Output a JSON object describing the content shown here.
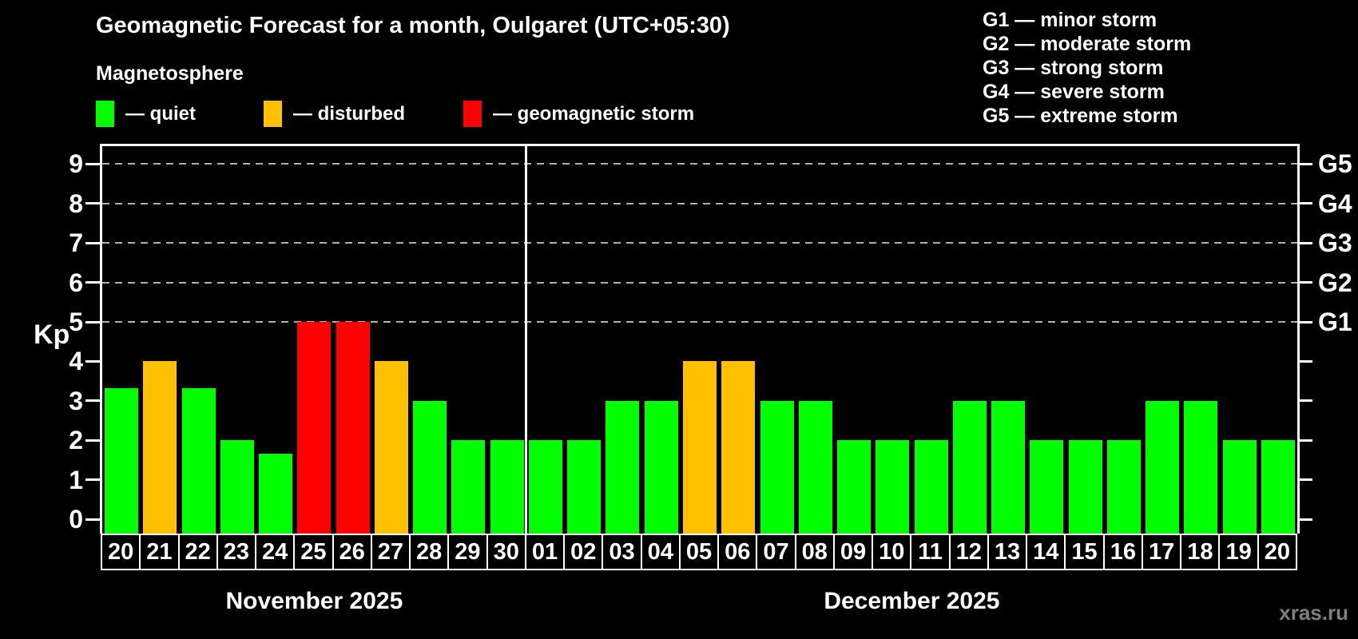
{
  "header": {
    "title": "Geomagnetic Forecast for a month, Oulgaret (UTC+05:30)",
    "subtitle": "Magnetosphere"
  },
  "legend": {
    "items": [
      {
        "key": "quiet",
        "label": "— quiet"
      },
      {
        "key": "disturbed",
        "label": "— disturbed"
      },
      {
        "key": "storm",
        "label": "— geomagnetic storm"
      }
    ]
  },
  "g_scale_legend": {
    "lines": [
      "G1 — minor storm",
      "G2 — moderate storm",
      "G3 — strong storm",
      "G4 — severe storm",
      "G5 — extreme storm"
    ]
  },
  "colors": {
    "quiet": "#00ff00",
    "disturbed": "#ffc000",
    "storm": "#ff0000",
    "background": "#000000",
    "axis": "#ffffff",
    "grid": "#b0b0b0",
    "watermark": "#7f7f7f"
  },
  "chart_data": {
    "type": "bar",
    "title": "Geomagnetic Forecast for a month, Oulgaret (UTC+05:30)",
    "subtitle": "Magnetosphere",
    "ylabel": "Kp",
    "ylim": [
      0,
      9
    ],
    "yticks": [
      0,
      1,
      2,
      3,
      4,
      5,
      6,
      7,
      8,
      9
    ],
    "gridlines_at": [
      5,
      6,
      7,
      8,
      9
    ],
    "grid": true,
    "right_axis": [
      {
        "kp": 5,
        "label": "G1"
      },
      {
        "kp": 6,
        "label": "G2"
      },
      {
        "kp": 7,
        "label": "G3"
      },
      {
        "kp": 8,
        "label": "G4"
      },
      {
        "kp": 9,
        "label": "G5"
      }
    ],
    "months": [
      {
        "label": "November 2025",
        "days": [
          {
            "day": "20",
            "kp": 3.33,
            "status": "quiet"
          },
          {
            "day": "21",
            "kp": 4,
            "status": "disturbed"
          },
          {
            "day": "22",
            "kp": 3.33,
            "status": "quiet"
          },
          {
            "day": "23",
            "kp": 2,
            "status": "quiet"
          },
          {
            "day": "24",
            "kp": 1.67,
            "status": "quiet"
          },
          {
            "day": "25",
            "kp": 5,
            "status": "storm"
          },
          {
            "day": "26",
            "kp": 5,
            "status": "storm"
          },
          {
            "day": "27",
            "kp": 4,
            "status": "disturbed"
          },
          {
            "day": "28",
            "kp": 3,
            "status": "quiet"
          },
          {
            "day": "29",
            "kp": 2,
            "status": "quiet"
          },
          {
            "day": "30",
            "kp": 2,
            "status": "quiet"
          }
        ]
      },
      {
        "label": "December 2025",
        "days": [
          {
            "day": "01",
            "kp": 2,
            "status": "quiet"
          },
          {
            "day": "02",
            "kp": 2,
            "status": "quiet"
          },
          {
            "day": "03",
            "kp": 3,
            "status": "quiet"
          },
          {
            "day": "04",
            "kp": 3,
            "status": "quiet"
          },
          {
            "day": "05",
            "kp": 4,
            "status": "disturbed"
          },
          {
            "day": "06",
            "kp": 4,
            "status": "disturbed"
          },
          {
            "day": "07",
            "kp": 3,
            "status": "quiet"
          },
          {
            "day": "08",
            "kp": 3,
            "status": "quiet"
          },
          {
            "day": "09",
            "kp": 2,
            "status": "quiet"
          },
          {
            "day": "10",
            "kp": 2,
            "status": "quiet"
          },
          {
            "day": "11",
            "kp": 2,
            "status": "quiet"
          },
          {
            "day": "12",
            "kp": 3,
            "status": "quiet"
          },
          {
            "day": "13",
            "kp": 3,
            "status": "quiet"
          },
          {
            "day": "14",
            "kp": 2,
            "status": "quiet"
          },
          {
            "day": "15",
            "kp": 2,
            "status": "quiet"
          },
          {
            "day": "16",
            "kp": 2,
            "status": "quiet"
          },
          {
            "day": "17",
            "kp": 3,
            "status": "quiet"
          },
          {
            "day": "18",
            "kp": 3,
            "status": "quiet"
          },
          {
            "day": "19",
            "kp": 2,
            "status": "quiet"
          },
          {
            "day": "20",
            "kp": 2,
            "status": "quiet"
          }
        ]
      }
    ]
  },
  "footer": {
    "watermark": "xras.ru"
  }
}
